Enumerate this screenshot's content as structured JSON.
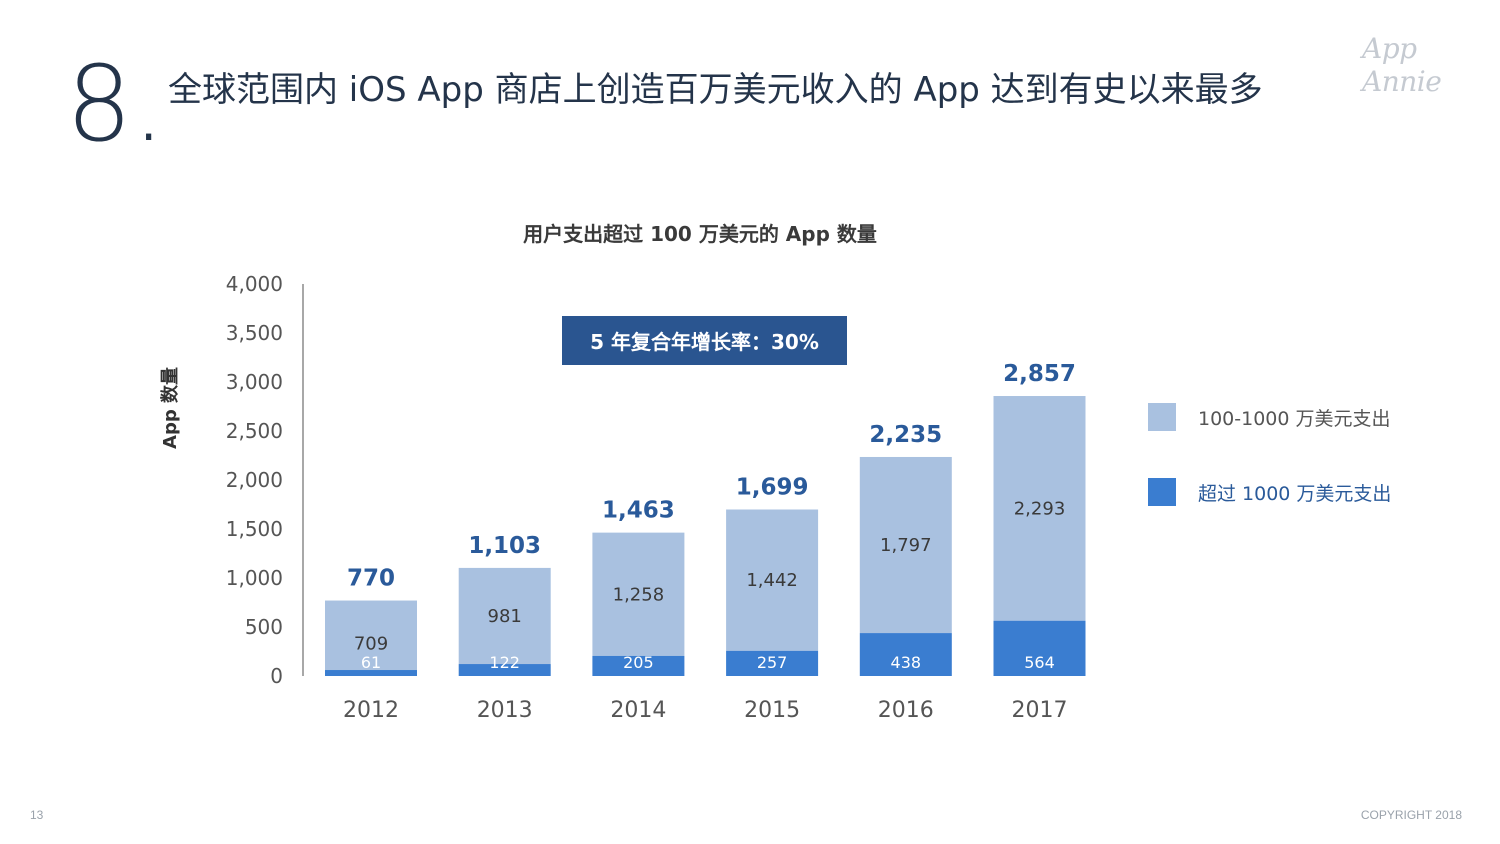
{
  "slide": {
    "number": "8.",
    "title": "全球范围内 iOS App 商店上创造百万美元收入的 App 达到有史以来最多",
    "brand": "App Annie",
    "page_number": "13",
    "copyright": "COPYRIGHT 2018"
  },
  "callout": {
    "cagr_text": "5 年复合年增长率：30%"
  },
  "colors": {
    "light_series": "#a9c1e0",
    "dark_series": "#3a7dd0",
    "total_label": "#2a5a9a",
    "axis": "#8c8c8c"
  },
  "chart_data": {
    "type": "bar",
    "stacked": true,
    "title": "用户支出超过 100 万美元的 App 数量",
    "xlabel": "",
    "ylabel": "App 数量",
    "ylim": [
      0,
      4000
    ],
    "yticks": [
      0,
      500,
      1000,
      1500,
      2000,
      2500,
      3000,
      3500,
      4000
    ],
    "ytick_labels": [
      "0",
      "500",
      "1,000",
      "1,500",
      "2,000",
      "2,500",
      "3,000",
      "3,500",
      "4,000"
    ],
    "categories": [
      "2012",
      "2013",
      "2014",
      "2015",
      "2016",
      "2017"
    ],
    "series": [
      {
        "name": "超过 1000 万美元支出",
        "values": [
          61,
          122,
          205,
          257,
          438,
          564
        ],
        "labels": [
          "61",
          "122",
          "205",
          "257",
          "438",
          "564"
        ]
      },
      {
        "name": "100-1000 万美元支出",
        "values": [
          709,
          981,
          1258,
          1442,
          1797,
          2293
        ],
        "labels": [
          "709",
          "981",
          "1,258",
          "1,442",
          "1,797",
          "2,293"
        ]
      }
    ],
    "totals": [
      770,
      1103,
      1463,
      1699,
      2235,
      2857
    ],
    "total_labels": [
      "770",
      "1,103",
      "1,463",
      "1,699",
      "2,235",
      "2,857"
    ],
    "legend": [
      {
        "label": "100-1000 万美元支出",
        "color": "#a9c1e0"
      },
      {
        "label": "超过 1000 万美元支出",
        "color": "#3a7dd0"
      }
    ],
    "legend_position": "right",
    "grid": false
  }
}
